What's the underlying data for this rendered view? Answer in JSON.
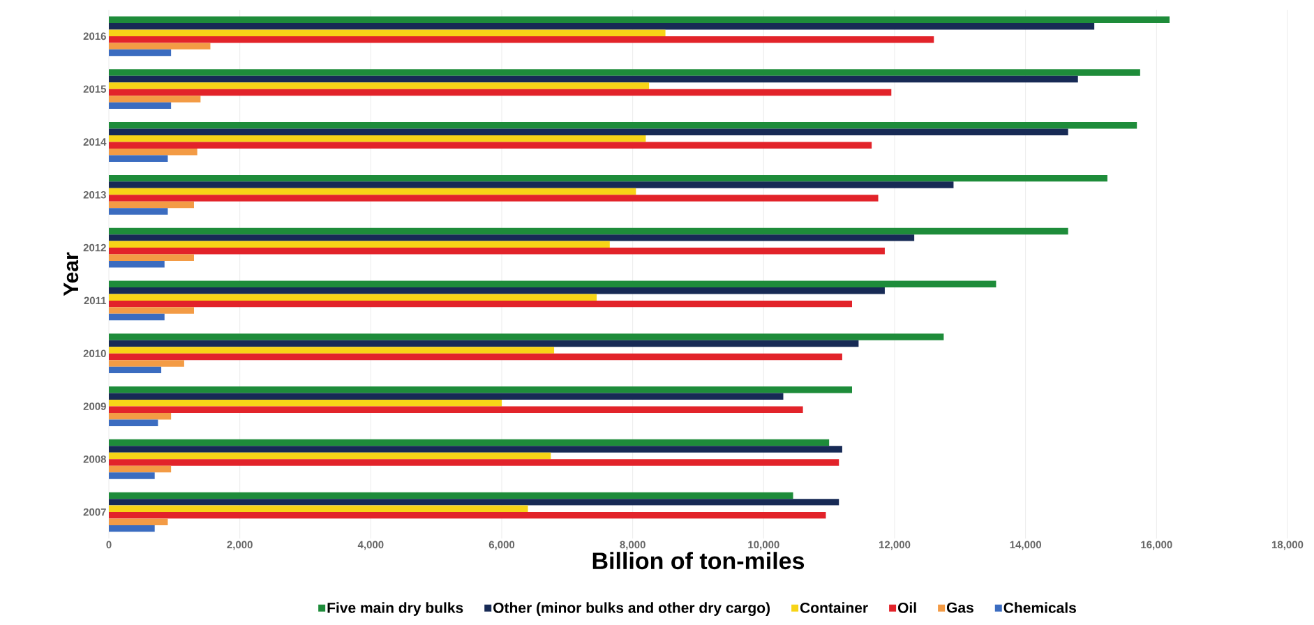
{
  "chart_data": {
    "type": "bar",
    "orientation": "horizontal",
    "xlabel": "Billion of ton-miles",
    "ylabel": "Year",
    "categories": [
      "2016",
      "2015",
      "2014",
      "2013",
      "2012",
      "2011",
      "2010",
      "2009",
      "2008",
      "2007"
    ],
    "series": [
      {
        "name": "Five main dry bulks",
        "color": "#1e8c3a",
        "values": [
          16200,
          15750,
          15700,
          15250,
          14650,
          13550,
          12750,
          11350,
          11000,
          10450
        ]
      },
      {
        "name": "Other (minor bulks and other dry cargo)",
        "color": "#172a55",
        "values": [
          15050,
          14800,
          14650,
          12900,
          12300,
          11850,
          11450,
          10300,
          11200,
          11150
        ]
      },
      {
        "name": "Container",
        "color": "#f7d417",
        "values": [
          8500,
          8250,
          8200,
          8050,
          7650,
          7450,
          6800,
          6000,
          6750,
          6400
        ]
      },
      {
        "name": "Oil",
        "color": "#e2232a",
        "values": [
          12600,
          11950,
          11650,
          11750,
          11850,
          11350,
          11200,
          10600,
          11150,
          10950
        ]
      },
      {
        "name": "Gas",
        "color": "#f39b45",
        "values": [
          1550,
          1400,
          1350,
          1300,
          1300,
          1300,
          1150,
          950,
          950,
          900
        ]
      },
      {
        "name": "Chemicals",
        "color": "#3b6cc0",
        "values": [
          950,
          950,
          900,
          900,
          850,
          850,
          800,
          750,
          700,
          700
        ]
      }
    ],
    "xlim": [
      0,
      18000
    ],
    "xticks": [
      0,
      {
        "value": 2000,
        "label": "2,000"
      },
      {
        "value": 4000,
        "label": "4,000"
      },
      {
        "value": 6000,
        "label": "6,000"
      },
      {
        "value": 8000,
        "label": "8,000"
      },
      {
        "value": 10000,
        "label": "10,000"
      },
      {
        "value": 12000,
        "label": "12,000"
      },
      {
        "value": 14000,
        "label": "14,000"
      },
      {
        "value": 16000,
        "label": "16,000"
      },
      {
        "value": 18000,
        "label": "18,000"
      }
    ],
    "grid": "x",
    "legend": "bottom"
  }
}
